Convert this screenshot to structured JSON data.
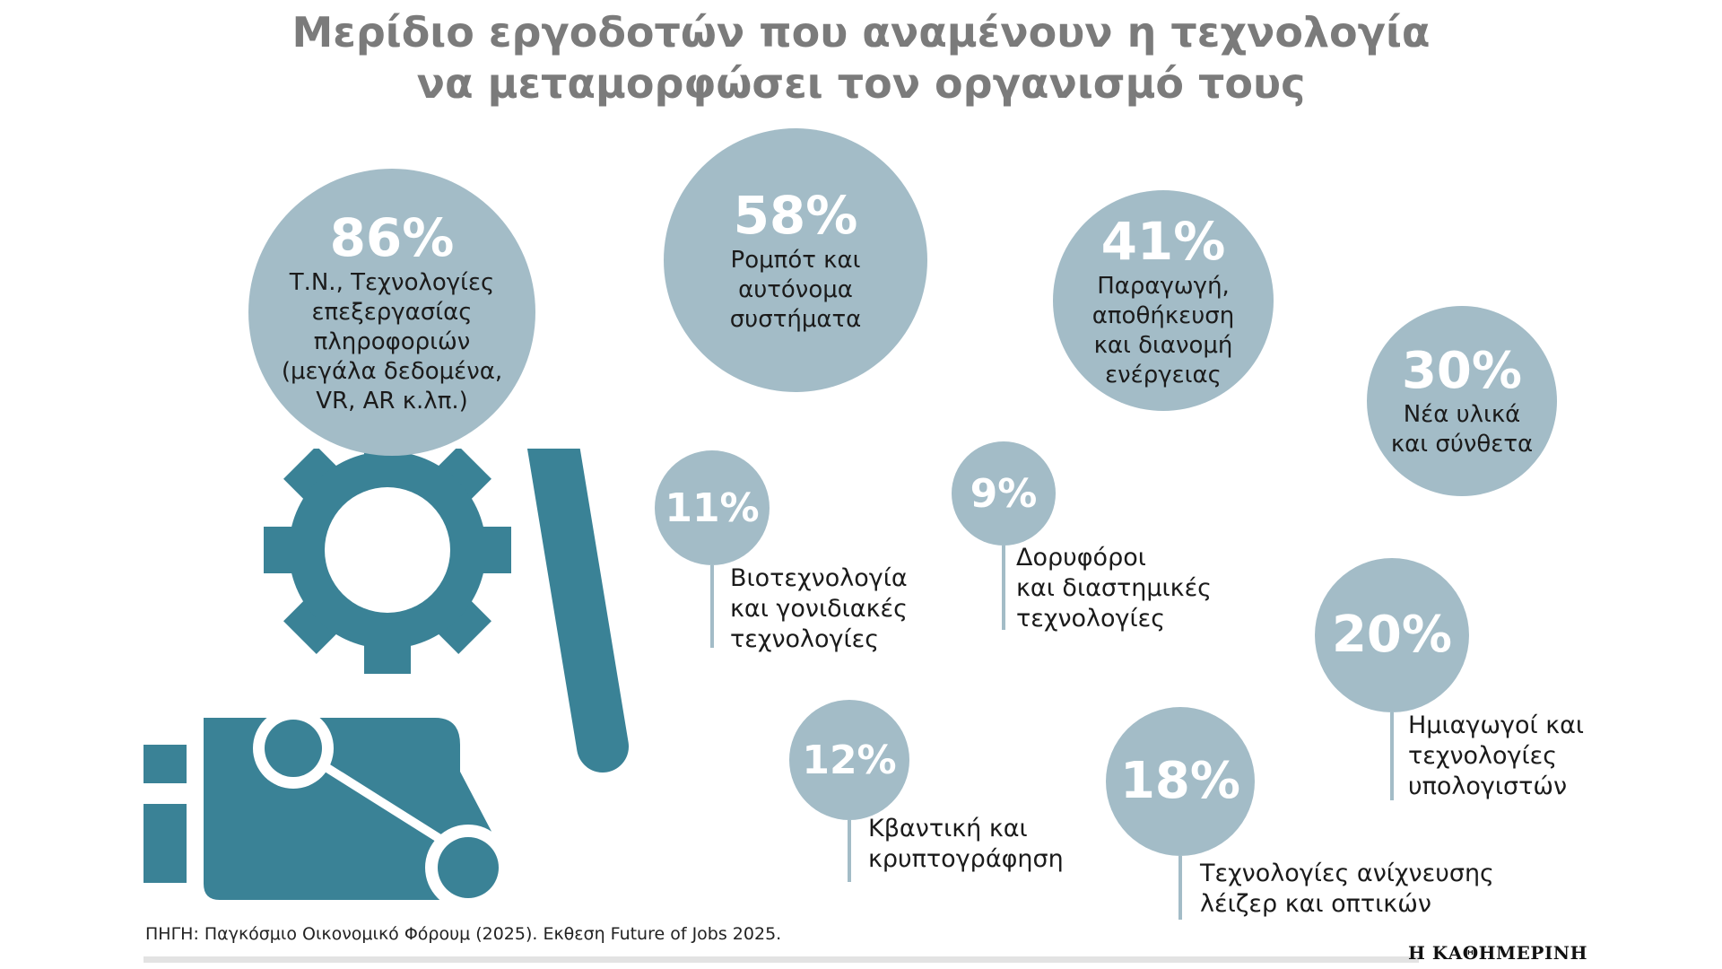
{
  "title_line1": "Μερίδιο εργοδοτών που αναμένουν η τεχνολογία",
  "title_line2": "να μεταμορφώσει τον οργανισμό τους",
  "source": "ΠΗΓΗ: Παγκόσμιο Οικονομικό Φόρουμ (2025). Εκθεση Future of Jobs 2025.",
  "brand": "Η ΚΑΘΗΜΕΡΙΝΗ",
  "colors": {
    "bubble": "#a3bcc7",
    "icon": "#3a8296",
    "title": "#7b7b7b"
  },
  "icons": [
    "gear-icon",
    "robot-arm-icon"
  ],
  "chart_data": {
    "type": "bubble",
    "unit": "%",
    "items": [
      {
        "value": 86,
        "label": "Τ.Ν., Τεχνολογίες επεξεργασίας πληροφοριών (μεγάλα δεδομένα, VR, AR κ.λπ.)"
      },
      {
        "value": 58,
        "label": "Ρομπότ και αυτόνομα συστήματα"
      },
      {
        "value": 41,
        "label": "Παραγωγή, αποθήκευση και διανομή ενέργειας"
      },
      {
        "value": 30,
        "label": "Νέα υλικά και σύνθετα"
      },
      {
        "value": 11,
        "label": "Βιοτεχνολογία και γονιδιακές τεχνολογίες"
      },
      {
        "value": 9,
        "label": "Δορυφόροι και διαστημικές τεχνολογίες"
      },
      {
        "value": 20,
        "label": "Ημιαγωγοί και τεχνολογίες υπολογιστών"
      },
      {
        "value": 12,
        "label": "Κβαντική και κρυπτογράφηση"
      },
      {
        "value": 18,
        "label": "Τεχνολογίες ανίχνευσης λέιζερ και οπτικών"
      }
    ]
  }
}
